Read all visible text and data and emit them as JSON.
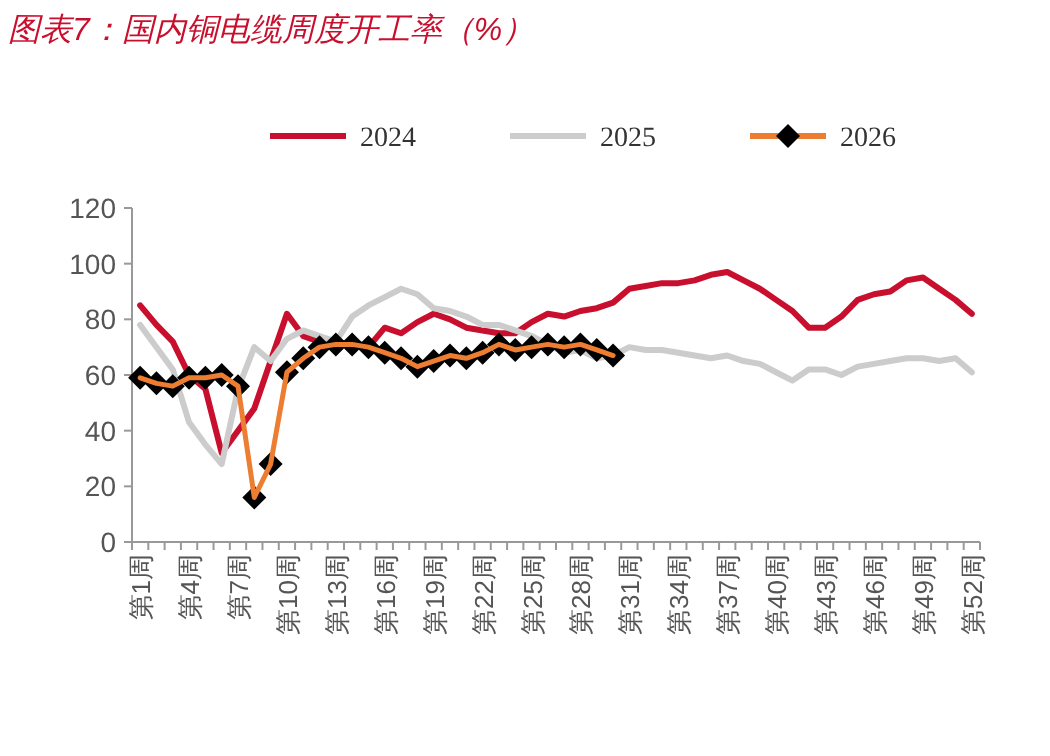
{
  "chart_data": {
    "type": "line",
    "title": "图表7：国内铜电缆周度开工率（%）",
    "categories": [
      "第1周",
      null,
      null,
      "第4周",
      null,
      null,
      "第7周",
      null,
      null,
      "第10周",
      null,
      null,
      "第13周",
      null,
      null,
      "第16周",
      null,
      null,
      "第19周",
      null,
      null,
      "第22周",
      null,
      null,
      "第25周",
      null,
      null,
      "第28周",
      null,
      null,
      "第31周",
      null,
      null,
      "第34周",
      null,
      null,
      "第37周",
      null,
      null,
      "第40周",
      null,
      null,
      "第43周",
      null,
      null,
      "第46周",
      null,
      null,
      "第49周",
      null,
      null,
      "第52周"
    ],
    "series": [
      {
        "name": "2024",
        "color": "#c8102e",
        "marker": "none",
        "values": [
          85,
          78,
          72,
          60,
          55,
          32,
          40,
          48,
          65,
          82,
          74,
          72,
          71,
          72,
          70,
          77,
          75,
          79,
          82,
          80,
          77,
          76,
          75,
          75,
          79,
          82,
          81,
          83,
          84,
          86,
          91,
          92,
          93,
          93,
          94,
          96,
          97,
          94,
          91,
          87,
          83,
          77,
          77,
          81,
          87,
          89,
          90,
          94,
          95,
          91,
          87,
          82
        ]
      },
      {
        "name": "2025",
        "color": "#cccccc",
        "marker": "none",
        "values": [
          78,
          70,
          62,
          43,
          35,
          28,
          55,
          70,
          65,
          73,
          76,
          74,
          72,
          81,
          85,
          88,
          91,
          89,
          84,
          83,
          81,
          78,
          78,
          76,
          74,
          71,
          68,
          69,
          66,
          67,
          70,
          69,
          69,
          68,
          67,
          66,
          67,
          65,
          64,
          61,
          58,
          62,
          62,
          60,
          63,
          64,
          65,
          66,
          66,
          65,
          66,
          61
        ]
      },
      {
        "name": "2026",
        "color": "#ed7d31",
        "marker": "diamond",
        "values": [
          59,
          57,
          56,
          59,
          59,
          60,
          56,
          16,
          28,
          61,
          66,
          70,
          71,
          71,
          70,
          68,
          66,
          63,
          65,
          67,
          66,
          68,
          71,
          69,
          70,
          71,
          70,
          71,
          69,
          67,
          null,
          null,
          null,
          null,
          null,
          null,
          null,
          null,
          null,
          null,
          null,
          null,
          null,
          null,
          null,
          null,
          null,
          null,
          null,
          null,
          null,
          null
        ]
      }
    ],
    "ylim": [
      0,
      120
    ],
    "yticks": [
      0,
      20,
      40,
      60,
      80,
      100,
      120
    ],
    "legend": "top",
    "grid": false
  }
}
